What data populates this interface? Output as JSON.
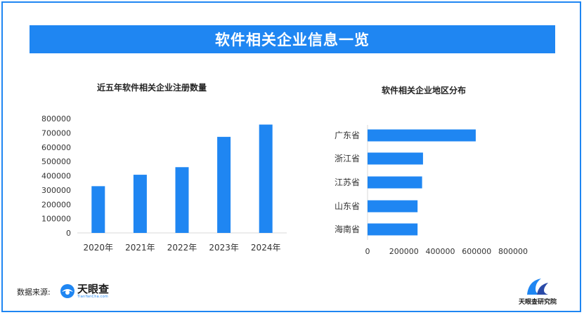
{
  "header": {
    "title": "软件相关企业信息一览"
  },
  "colors": {
    "accent": "#1f86f2",
    "bar": "#1f86f2"
  },
  "chart_data": [
    {
      "type": "bar",
      "orientation": "vertical",
      "title": "近五年软件相关企业注册数量",
      "categories": [
        "2020年",
        "2021年",
        "2022年",
        "2023年",
        "2024年"
      ],
      "values": [
        327000,
        407000,
        460000,
        672000,
        758000
      ],
      "ylim": [
        0,
        800000
      ],
      "yticks": [
        "0",
        "100000",
        "200000",
        "300000",
        "400000",
        "500000",
        "600000",
        "700000",
        "800000"
      ],
      "grid": false,
      "legend": "none"
    },
    {
      "type": "bar",
      "orientation": "horizontal",
      "title": "软件相关企业地区分布",
      "categories": [
        "广东省",
        "浙江省",
        "江苏省",
        "山东省",
        "海南省"
      ],
      "values": [
        595000,
        305000,
        300000,
        275000,
        275000
      ],
      "xlim": [
        0,
        800000
      ],
      "xticks": [
        "0",
        "200000",
        "400000",
        "600000",
        "800000"
      ],
      "grid": false,
      "legend": "none"
    }
  ],
  "footer": {
    "source_label": "数据来源:",
    "logo_name": "天眼查",
    "logo_url_text": "TianYanCha.com",
    "institute": "天眼查研究院"
  }
}
